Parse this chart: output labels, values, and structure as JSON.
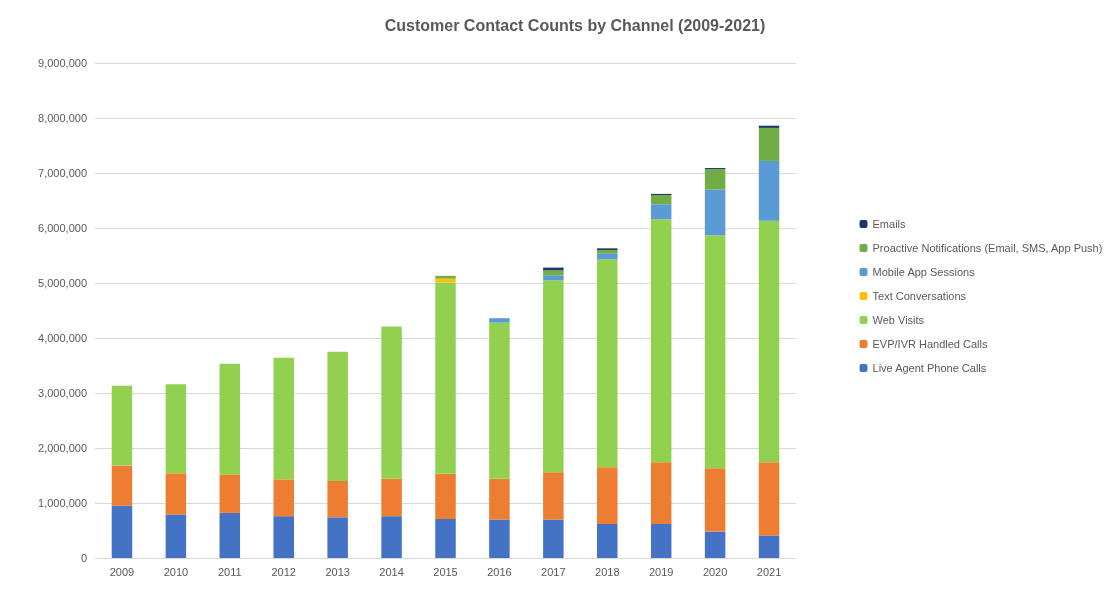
{
  "chart_data": {
    "type": "bar",
    "title": "Customer Contact Counts by Channel (2009-2021)",
    "stacked": true,
    "grid": "y",
    "legend": "right",
    "categories": [
      "2009",
      "2010",
      "2011",
      "2012",
      "2013",
      "2014",
      "2015",
      "2016",
      "2017",
      "2018",
      "2019",
      "2020",
      "2021"
    ],
    "ylim": [
      0,
      9000000
    ],
    "yticks": [
      0,
      {
        "value": 1000000,
        "label": "1,000,000"
      },
      {
        "value": 2000000,
        "label": "2,000,000"
      },
      {
        "value": 3000000,
        "label": "3,000,000"
      },
      {
        "value": 4000000,
        "label": "4,000,000"
      },
      {
        "value": 5000000,
        "label": "5,000,000"
      },
      {
        "value": 6000000,
        "label": "6,000,000"
      },
      {
        "value": 7000000,
        "label": "7,000,000"
      },
      {
        "value": 8000000,
        "label": "8,000,000"
      },
      {
        "value": 9000000,
        "label": "9,000,000"
      }
    ],
    "series": [
      {
        "name": "Live Agent Phone Calls",
        "color": "#4472c4",
        "values": [
          950000,
          790000,
          820000,
          760000,
          740000,
          760000,
          710000,
          700000,
          700000,
          620000,
          620000,
          480000,
          410000
        ]
      },
      {
        "name": "EVP/IVR Handled Calls",
        "color": "#ed7d31",
        "values": [
          730000,
          750000,
          700000,
          670000,
          660000,
          680000,
          820000,
          740000,
          860000,
          1030000,
          1120000,
          1150000,
          1330000
        ]
      },
      {
        "name": "Web Visits",
        "color": "#92d050",
        "values": [
          1450000,
          1620000,
          2010000,
          2210000,
          2350000,
          2770000,
          3480000,
          2840000,
          3490000,
          3780000,
          4420000,
          4240000,
          4390000
        ]
      },
      {
        "name": "Text Conversations",
        "color": "#ffc000",
        "values": [
          0,
          0,
          0,
          0,
          0,
          0,
          70000,
          0,
          0,
          0,
          0,
          0,
          0
        ]
      },
      {
        "name": "Mobile App Sessions",
        "color": "#5b9bd5",
        "values": [
          0,
          0,
          0,
          0,
          0,
          0,
          0,
          80000,
          90000,
          110000,
          270000,
          830000,
          1090000
        ]
      },
      {
        "name": "Proactive Notifications (Email, SMS, App Push)",
        "color": "#70ad47",
        "values": [
          0,
          0,
          0,
          0,
          0,
          0,
          50000,
          0,
          90000,
          60000,
          170000,
          370000,
          600000
        ]
      },
      {
        "name": "Emails",
        "color": "#1f3864",
        "values": [
          0,
          0,
          0,
          0,
          0,
          0,
          0,
          0,
          50000,
          30000,
          20000,
          20000,
          40000
        ]
      }
    ]
  }
}
